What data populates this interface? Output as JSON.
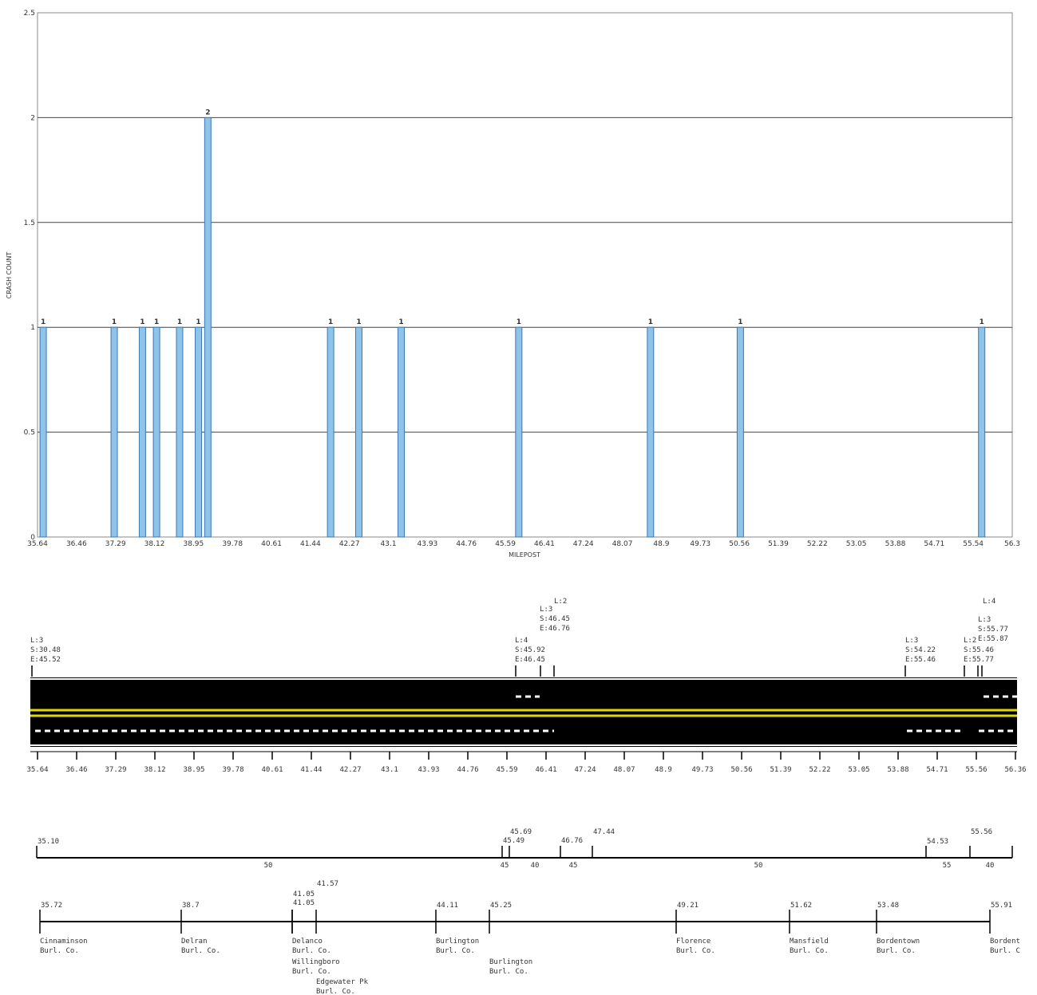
{
  "chart_data": {
    "type": "bar",
    "ylabel": "CRASH COUNT",
    "xlabel": "MILEPOST",
    "ylim": [
      0,
      2.5
    ],
    "y_ticks": [
      "0",
      "0.5",
      "1",
      "1.5",
      "2",
      "2.5"
    ],
    "x_ticks": [
      "35.64",
      "36.46",
      "37.29",
      "38.12",
      "38.95",
      "39.78",
      "40.61",
      "41.44",
      "42.27",
      "43.1",
      "43.93",
      "44.76",
      "45.59",
      "46.41",
      "47.24",
      "48.07",
      "48.9",
      "49.73",
      "50.56",
      "51.39",
      "52.22",
      "53.05",
      "53.88",
      "54.71",
      "55.54",
      "56.3"
    ],
    "bars": [
      {
        "x": 35.76,
        "value": 1,
        "label": "1"
      },
      {
        "x": 37.27,
        "value": 1,
        "label": "1"
      },
      {
        "x": 37.87,
        "value": 1,
        "label": "1"
      },
      {
        "x": 38.17,
        "value": 1,
        "label": "1"
      },
      {
        "x": 38.66,
        "value": 1,
        "label": "1"
      },
      {
        "x": 39.06,
        "value": 1,
        "label": "1"
      },
      {
        "x": 39.26,
        "value": 2,
        "label": "2"
      },
      {
        "x": 41.87,
        "value": 1,
        "label": "1"
      },
      {
        "x": 42.47,
        "value": 1,
        "label": "1"
      },
      {
        "x": 43.37,
        "value": 1,
        "label": "1"
      },
      {
        "x": 45.87,
        "value": 1,
        "label": "1"
      },
      {
        "x": 48.67,
        "value": 1,
        "label": "1"
      },
      {
        "x": 50.58,
        "value": 1,
        "label": "1"
      },
      {
        "x": 55.71,
        "value": 1,
        "label": "1"
      }
    ],
    "grid": true
  },
  "lanes": {
    "ticks": [
      "35.64",
      "36.46",
      "37.29",
      "38.12",
      "38.95",
      "39.78",
      "40.61",
      "41.44",
      "42.27",
      "43.1",
      "43.93",
      "44.76",
      "45.59",
      "46.41",
      "47.24",
      "48.07",
      "48.9",
      "49.73",
      "50.56",
      "51.39",
      "52.22",
      "53.05",
      "53.88",
      "54.71",
      "55.56",
      "56.36"
    ],
    "annotations": [
      {
        "lines": [
          "L:3",
          "S:30.48",
          "E:45.52"
        ]
      },
      {
        "lines": [
          "L:4",
          "S:45.92",
          "E:46.45"
        ]
      },
      {
        "lines": [
          "L:3",
          "S:46.45",
          "E:46.76"
        ]
      },
      {
        "lines": [
          "L:2"
        ]
      },
      {
        "lines": [
          "L:3",
          "S:54.22",
          "E:55.46"
        ]
      },
      {
        "lines": [
          "L:2",
          "S:55.46",
          "E:55.77"
        ]
      },
      {
        "lines": [
          "L:3",
          "S:55.77",
          "E:55.87"
        ]
      },
      {
        "lines": [
          "L:4"
        ]
      }
    ]
  },
  "speed": {
    "points": [
      "35.10",
      "45.49",
      "45.69",
      "46.76",
      "47.44",
      "54.53",
      "55.56"
    ],
    "limits": [
      "50",
      "45",
      "40",
      "45",
      "50",
      "55",
      "40"
    ]
  },
  "municipalities": {
    "points": [
      "35.72",
      "38.7",
      "41.05",
      "41.05",
      "41.57",
      "44.11",
      "45.25",
      "49.21",
      "51.62",
      "53.48",
      "55.91"
    ],
    "places": [
      {
        "name": "Cinnaminson",
        "county": "Burl. Co."
      },
      {
        "name": "Delran",
        "county": "Burl. Co."
      },
      {
        "name": "Delanco",
        "county": "Burl. Co."
      },
      {
        "name": "Willingboro",
        "county": "Burl. Co."
      },
      {
        "name": "Edgewater Pk",
        "county": "Burl. Co."
      },
      {
        "name": "Burlington",
        "county": "Burl. Co."
      },
      {
        "name": "Burlington",
        "county": "Burl. Co."
      },
      {
        "name": "Florence",
        "county": "Burl. Co."
      },
      {
        "name": "Mansfield",
        "county": "Burl. Co."
      },
      {
        "name": "Bordentown",
        "county": "Burl. Co."
      },
      {
        "name": "Bordent",
        "county": "Burl. C"
      }
    ]
  }
}
